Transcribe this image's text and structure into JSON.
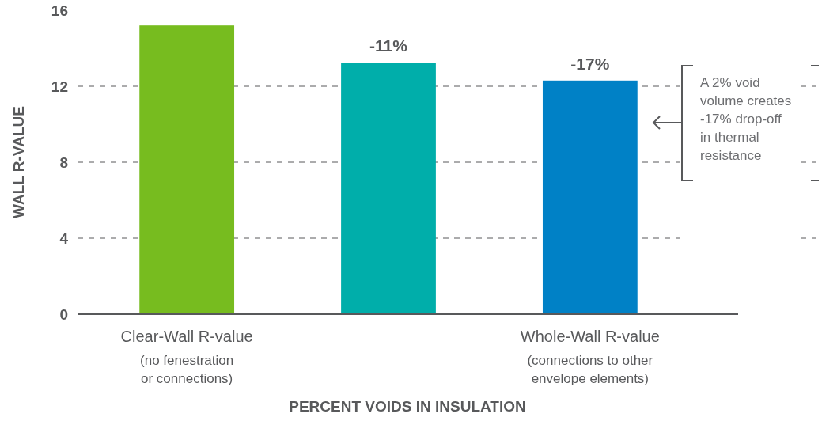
{
  "chart_data": {
    "type": "bar",
    "xlabel": "PERCENT VOIDS IN INSULATION",
    "ylabel": "WALL R-VALUE",
    "categories": [
      "Clear-Wall R-value\n(no fenestration\nor connections)",
      null,
      "Whole-Wall R-value\n(connections to other\nenvelope elements)"
    ],
    "values": [
      15.2,
      13.25,
      12.3
    ],
    "colors": [
      "#77bc1f",
      "#00aeaa",
      "#0081c6"
    ],
    "ylim": [
      0,
      16
    ],
    "yticks": [
      0,
      4,
      8,
      12,
      16
    ],
    "grid": "y",
    "annotations": [
      {
        "text": "-11%",
        "y": 13.25
      },
      {
        "text": "-17%",
        "x": "Whole-Wall R-value\n(connections to other\nenvelope elements)",
        "y": 12.3
      },
      "A 2% void\nvolume creates\n-17% drop-off\nin thermal\nresistance"
    ]
  }
}
